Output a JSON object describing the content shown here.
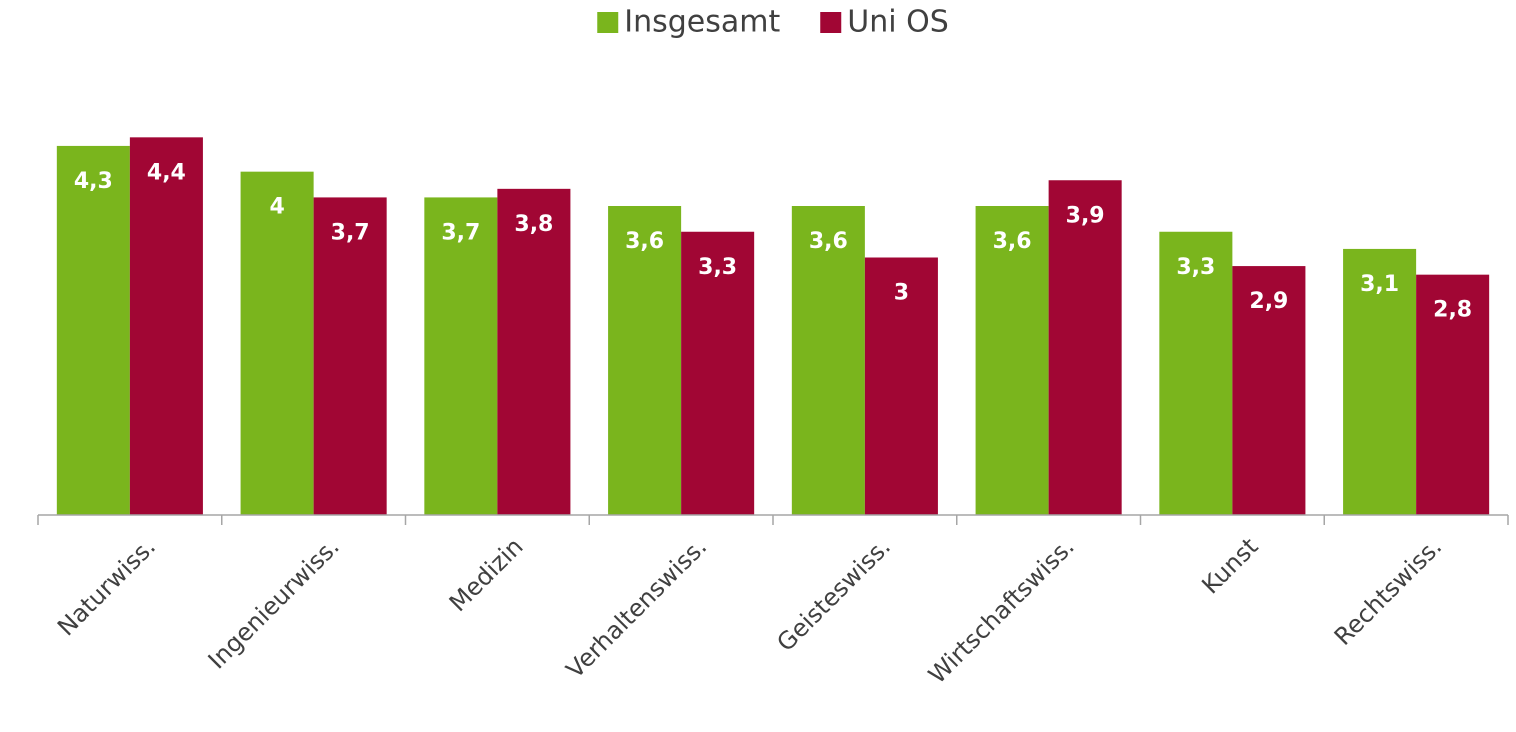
{
  "chart_data": {
    "type": "bar",
    "categories": [
      "Naturwiss.",
      "Ingenieurwiss.",
      "Medizin",
      "Verhaltenswiss.",
      "Geisteswiss.",
      "Wirtschaftswiss.",
      "Kunst",
      "Rechtswiss."
    ],
    "series": [
      {
        "name": "Insgesamt",
        "color": "#7ab51d",
        "values": [
          4.3,
          4,
          3.7,
          3.6,
          3.6,
          3.6,
          3.3,
          3.1
        ],
        "value_labels": [
          "4,3",
          "4",
          "3,7",
          "3,6",
          "3,6",
          "3,6",
          "3,3",
          "3,1"
        ]
      },
      {
        "name": "Uni OS",
        "color": "#a10634",
        "values": [
          4.4,
          3.7,
          3.8,
          3.3,
          3,
          3.9,
          2.9,
          2.8
        ],
        "value_labels": [
          "4,4",
          "3,7",
          "3,8",
          "3,3",
          "3",
          "3,9",
          "2,9",
          "2,8"
        ]
      }
    ],
    "ylim": [
      0,
      6
    ],
    "legend": "top"
  }
}
